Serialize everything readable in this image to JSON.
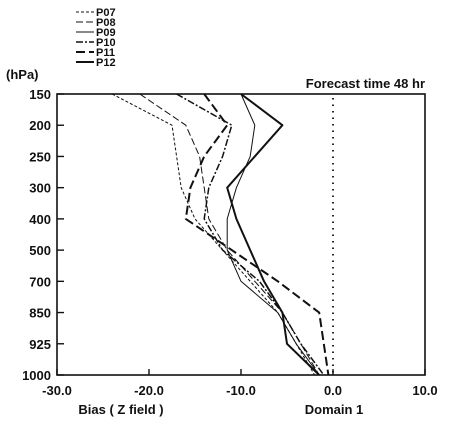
{
  "chart_data": {
    "type": "line",
    "title": "Forecast time 48 hr",
    "xlabel": "Bias ( Z field )",
    "ylabel": "(hPa)",
    "annotation": "Domain 1",
    "xlim": [
      -30.0,
      10.0
    ],
    "x_ticks": [
      "-30.0",
      "-20.0",
      "-10.0",
      "0.0",
      "10.0"
    ],
    "y_categories": [
      "150",
      "200",
      "250",
      "300",
      "400",
      "500",
      "700",
      "850",
      "925",
      "1000"
    ],
    "reference_line_x": 0.0,
    "grid": false,
    "legend_position": "top-left",
    "series": [
      {
        "name": "P07",
        "dash": "3,2",
        "width": 1,
        "values": [
          -24.0,
          -17.5,
          -17.0,
          -16.5,
          -15.0,
          -12.0,
          -9.0,
          -6.0,
          -4.0,
          -2.0
        ]
      },
      {
        "name": "P08",
        "dash": "7,3",
        "width": 1,
        "values": [
          -21.0,
          -16.0,
          -14.5,
          -14.0,
          -13.5,
          -11.5,
          -8.5,
          -5.5,
          -3.5,
          -1.5
        ]
      },
      {
        "name": "P09",
        "dash": "",
        "width": 1,
        "values": [
          -10.0,
          -8.5,
          -9.0,
          -10.5,
          -11.5,
          -11.5,
          -10.0,
          -6.0,
          -4.0,
          -1.5
        ]
      },
      {
        "name": "P10",
        "dash": "7,2,2,2",
        "width": 1.5,
        "values": [
          -17.0,
          -11.0,
          -12.0,
          -13.5,
          -14.0,
          -12.0,
          -8.0,
          -5.5,
          -3.5,
          -1.0
        ]
      },
      {
        "name": "P11",
        "dash": "9,4",
        "width": 2,
        "values": [
          -14.0,
          -11.5,
          -14.0,
          -15.5,
          -16.0,
          -11.0,
          -6.0,
          -1.5,
          -1.0,
          -0.5
        ]
      },
      {
        "name": "P12",
        "dash": "",
        "width": 2,
        "values": [
          -10.0,
          -5.5,
          -8.5,
          -11.5,
          -10.5,
          -9.0,
          -7.5,
          -5.5,
          -5.0,
          -1.5
        ]
      }
    ]
  }
}
